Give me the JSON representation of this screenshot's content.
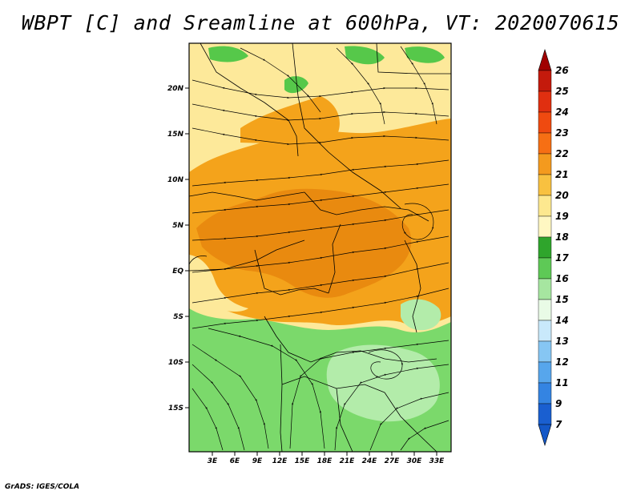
{
  "title": "WBPT [C] and Sreamline at 600hPa, VT: 2020070615",
  "credit": "GrADS: IGES/COLA",
  "map": {
    "lat_labels": [
      "20N",
      "15N",
      "10N",
      "5N",
      "EQ",
      "5S",
      "10S",
      "15S"
    ],
    "lon_labels": [
      "3E",
      "6E",
      "9E",
      "12E",
      "15E",
      "18E",
      "21E",
      "24E",
      "27E",
      "30E",
      "33E"
    ],
    "regions": [
      {
        "name": "north-yellow",
        "color": "#fde99a"
      },
      {
        "name": "tropical-orange",
        "color": "#f4a31b"
      },
      {
        "name": "inner-dark-orange",
        "color": "#e98a0f"
      },
      {
        "name": "south-green",
        "color": "#7bd96b"
      },
      {
        "name": "south-light-green",
        "color": "#b3ecaa"
      },
      {
        "name": "north-green-patches",
        "color": "#56c84a"
      }
    ]
  },
  "colorbar": {
    "labels": [
      "26",
      "25",
      "24",
      "23",
      "22",
      "21",
      "20",
      "19",
      "18",
      "17",
      "16",
      "15",
      "14",
      "13",
      "12",
      "11",
      "9",
      "7"
    ],
    "colors": [
      "#a00000",
      "#c41a0c",
      "#e02f10",
      "#ef4a10",
      "#f66f14",
      "#f49a1e",
      "#f8c140",
      "#fde88f",
      "#fff7c2",
      "#2fa52c",
      "#5ec956",
      "#a6e6a0",
      "#e9fbe6",
      "#c9e9fb",
      "#86c6f3",
      "#57a6ec",
      "#3484e2",
      "#1a5fd0",
      "#1458c8"
    ]
  }
}
